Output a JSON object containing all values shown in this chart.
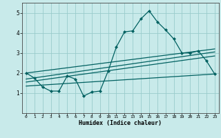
{
  "xlabel": "Humidex (Indice chaleur)",
  "bg_color": "#c8eaea",
  "line_color": "#006060",
  "grid_color": "#99cccc",
  "xlim": [
    -0.5,
    23.5
  ],
  "ylim": [
    0,
    5.5
  ],
  "xticks": [
    0,
    1,
    2,
    3,
    4,
    5,
    6,
    7,
    8,
    9,
    10,
    11,
    12,
    13,
    14,
    15,
    16,
    17,
    18,
    19,
    20,
    21,
    22,
    23
  ],
  "yticks": [
    1,
    2,
    3,
    4,
    5
  ],
  "main_x": [
    0,
    1,
    2,
    3,
    4,
    5,
    6,
    7,
    8,
    9,
    10,
    11,
    12,
    13,
    14,
    15,
    16,
    17,
    18,
    19,
    20,
    21,
    22,
    23
  ],
  "main_y": [
    2.0,
    1.75,
    1.3,
    1.1,
    1.1,
    1.85,
    1.7,
    0.85,
    1.05,
    1.1,
    2.1,
    3.3,
    4.05,
    4.1,
    4.7,
    5.1,
    4.55,
    4.15,
    3.7,
    3.0,
    3.0,
    3.1,
    2.6,
    1.95
  ],
  "trend_lines": [
    {
      "x": [
        0,
        23
      ],
      "y": [
        2.0,
        2.0
      ]
    },
    {
      "x": [
        1,
        23
      ],
      "y": [
        1.4,
        3.0
      ]
    },
    {
      "x": [
        1,
        23
      ],
      "y": [
        1.5,
        2.95
      ]
    },
    {
      "x": [
        1,
        23
      ],
      "y": [
        1.6,
        2.82
      ]
    }
  ]
}
